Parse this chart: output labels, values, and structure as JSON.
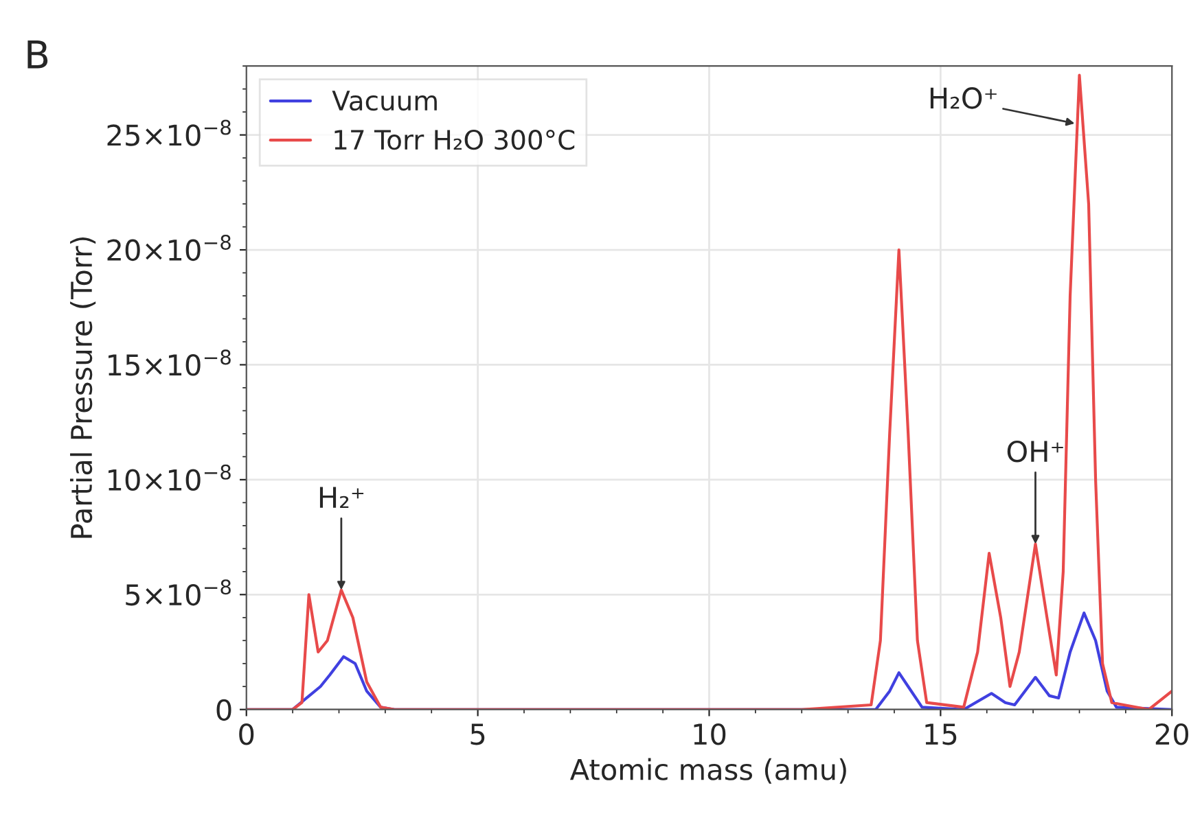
{
  "chart_data": {
    "type": "line",
    "xlabel": "Atomic mass (amu)",
    "ylabel": "Partial Pressure (Torr)",
    "xlim": [
      0,
      20
    ],
    "xticks": [
      0,
      5,
      10,
      15,
      20
    ],
    "ylim": [
      0,
      2.8e-07
    ],
    "yticks": [
      0,
      {
        "value": 5e-08,
        "label": "5×10$^{−8}$"
      },
      {
        "value": 1e-07,
        "label": "10×10$^{−8}$"
      },
      {
        "value": 1.5e-07,
        "label": "15×10$^{−8}$"
      },
      {
        "value": 2e-07,
        "label": "20×10$^{−8}$"
      },
      {
        "value": 2.5e-07,
        "label": "25×10$^{−8}$"
      }
    ],
    "grid": true,
    "legend": "top left",
    "series": [
      {
        "name": "Vacuum",
        "color": "#4040e0",
        "x": [
          0,
          1.0,
          1.3,
          1.6,
          1.8,
          2.1,
          2.35,
          2.6,
          2.9,
          3.2,
          13.6,
          13.9,
          14.1,
          14.3,
          14.6,
          15.5,
          16.1,
          16.4,
          16.6,
          17.05,
          17.35,
          17.55,
          17.8,
          18.1,
          18.35,
          18.6,
          18.8,
          20
        ],
        "values": [
          0,
          0,
          5e-09,
          1e-08,
          1.5e-08,
          2.3e-08,
          2e-08,
          8e-09,
          1e-09,
          0,
          0,
          8e-09,
          1.6e-08,
          1e-08,
          1e-09,
          0,
          7e-09,
          3e-09,
          2e-09,
          1.4e-08,
          6e-09,
          5e-09,
          2.5e-08,
          4.2e-08,
          3e-08,
          8e-09,
          1e-09,
          0
        ]
      },
      {
        "name": "17 Torr H₂O 300°C",
        "color": "#e84a4a",
        "x": [
          0,
          1.0,
          1.2,
          1.35,
          1.55,
          1.75,
          2.05,
          2.3,
          2.6,
          2.9,
          3.2,
          12,
          13.5,
          13.7,
          13.9,
          14.1,
          14.3,
          14.5,
          14.7,
          15.5,
          15.8,
          16.05,
          16.3,
          16.5,
          16.7,
          17.05,
          17.3,
          17.5,
          17.65,
          17.8,
          18.0,
          18.2,
          18.35,
          18.5,
          18.7,
          19.5,
          20
        ],
        "values": [
          0,
          0,
          3e-09,
          5e-08,
          2.5e-08,
          3e-08,
          5.2e-08,
          4e-08,
          1.2e-08,
          1e-09,
          0,
          0,
          2e-09,
          3e-08,
          1.2e-07,
          2e-07,
          1.2e-07,
          3e-08,
          3e-09,
          1e-09,
          2.5e-08,
          6.8e-08,
          4e-08,
          1e-08,
          2.5e-08,
          7.2e-08,
          4e-08,
          1.5e-08,
          6e-08,
          1.8e-07,
          2.76e-07,
          2.2e-07,
          1e-07,
          2e-08,
          3e-09,
          0,
          8e-09
        ]
      }
    ],
    "annotations": [
      "B",
      {
        "text": "H₂⁺",
        "x": 2.05,
        "y": 5.2e-08
      },
      {
        "text": "OH⁺",
        "x": 17.05,
        "y": 7.2e-08
      },
      {
        "text": "H₂O⁺",
        "x": 17.9,
        "y": 2.55e-07
      }
    ]
  }
}
